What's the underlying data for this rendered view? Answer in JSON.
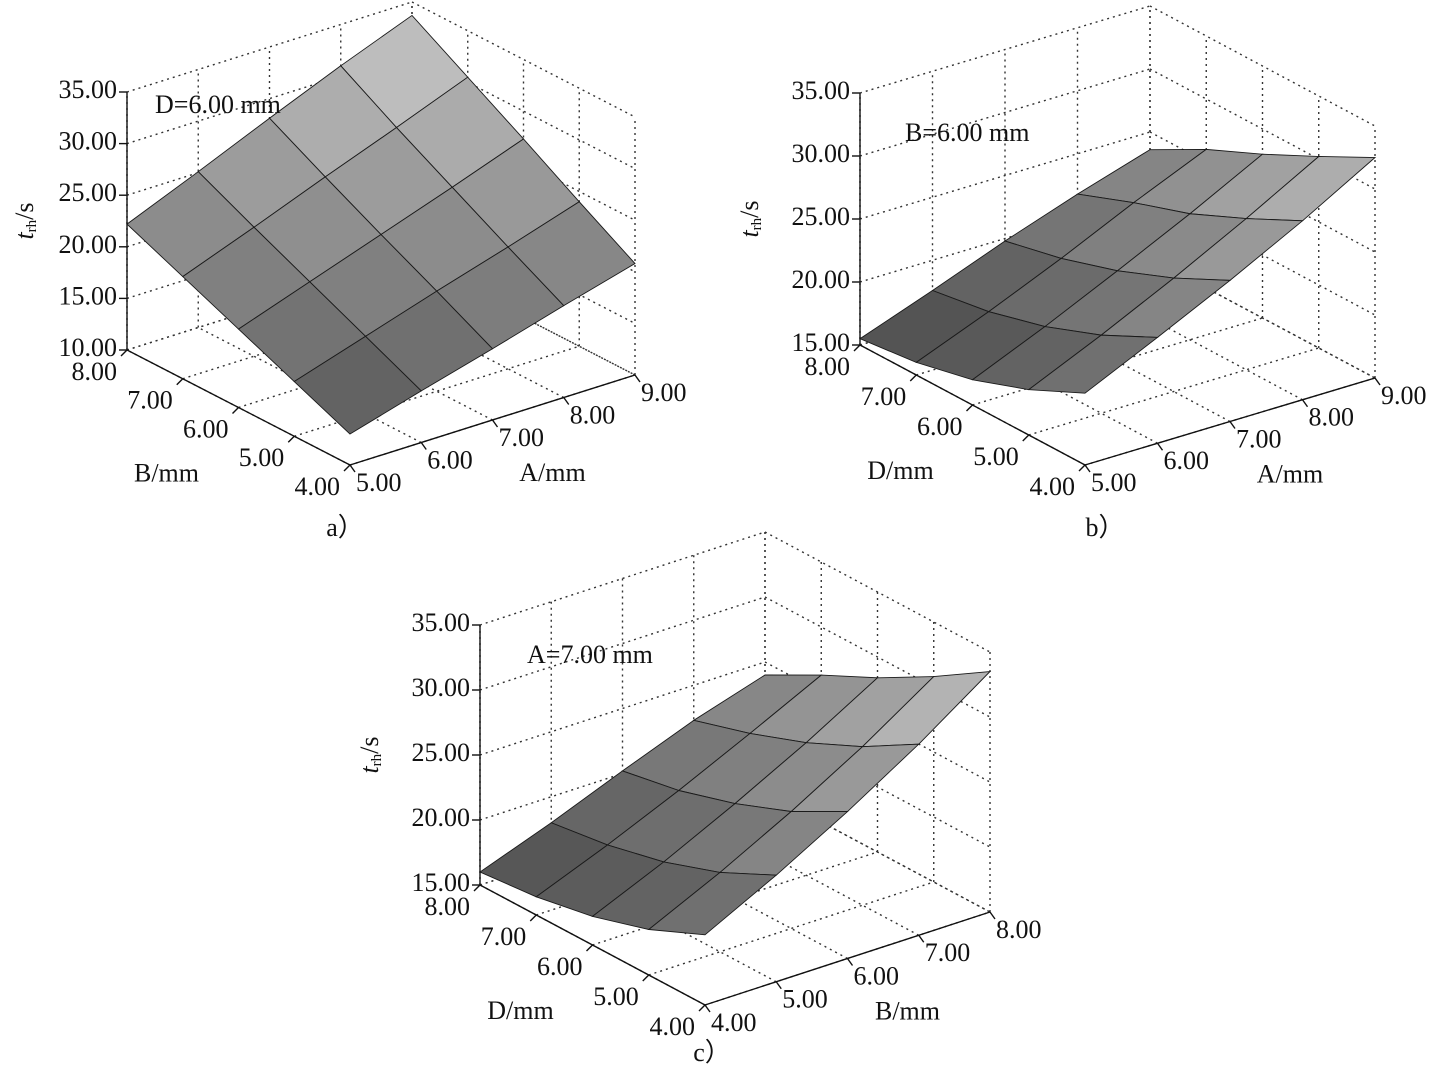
{
  "chart_data": [
    {
      "type": "surface",
      "annotation": "D=6.00 mm",
      "caption": "a）",
      "z_label": {
        "var": "t",
        "sub": "rh",
        "unit": "/s"
      },
      "x_label": "A/mm",
      "y_label": "B/mm",
      "x": [
        5,
        6,
        7,
        8,
        9
      ],
      "y": [
        4,
        5,
        6,
        7,
        8
      ],
      "z": [
        [
          13,
          15.0,
          16.9,
          18.9,
          20.8
        ],
        [
          15.3,
          17.5,
          19.7,
          21.8,
          24.0
        ],
        [
          17.6,
          20.0,
          22.4,
          24.8,
          27.3
        ],
        [
          19.9,
          22.5,
          25.2,
          27.8,
          30.5
        ],
        [
          22.2,
          25.1,
          28.1,
          31.0,
          33.7
        ]
      ],
      "xlim": [
        5,
        9
      ],
      "ylim": [
        4,
        8
      ],
      "zlim": [
        10,
        35
      ],
      "xticks": [
        {
          "value": 5,
          "label": "5.00"
        },
        {
          "value": 6,
          "label": "6.00"
        },
        {
          "value": 7,
          "label": "7.00"
        },
        {
          "value": 8,
          "label": "8.00"
        },
        {
          "value": 9,
          "label": "9.00"
        }
      ],
      "yticks": [
        {
          "value": 4,
          "label": "4.00"
        },
        {
          "value": 5,
          "label": "5.00"
        },
        {
          "value": 6,
          "label": "6.00"
        },
        {
          "value": 7,
          "label": "7.00"
        },
        {
          "value": 8,
          "label": "8.00"
        }
      ],
      "zticks": [
        {
          "value": 10,
          "label": "10.00"
        },
        {
          "value": 15,
          "label": "15.00"
        },
        {
          "value": 20,
          "label": "20.00"
        },
        {
          "value": 25,
          "label": "25.00"
        },
        {
          "value": 30,
          "label": "30.00"
        },
        {
          "value": 35,
          "label": "35.00"
        }
      ]
    },
    {
      "type": "surface",
      "annotation": "B=6.00 mm",
      "caption": "b）",
      "z_label": {
        "var": "t",
        "sub": "rh",
        "unit": "/s"
      },
      "x_label": "A/mm",
      "y_label": "D/mm",
      "x": [
        5,
        6,
        7,
        8,
        9
      ],
      "y": [
        4,
        5,
        6,
        7,
        8
      ],
      "z": [
        [
          20.7,
          23.4,
          26.2,
          29.2,
          32.5
        ],
        [
          18.6,
          21.2,
          24.0,
          27.0,
          30.2
        ],
        [
          17.0,
          19.5,
          22.2,
          25.0,
          28.0
        ],
        [
          16.0,
          18.3,
          20.8,
          23.5,
          26.0
        ],
        [
          15.5,
          17.6,
          19.8,
          21.8,
          23.6
        ]
      ],
      "xlim": [
        5,
        9
      ],
      "ylim": [
        4,
        8
      ],
      "zlim": [
        15,
        35
      ],
      "xticks": [
        {
          "value": 5,
          "label": "5.00"
        },
        {
          "value": 6,
          "label": "6.00"
        },
        {
          "value": 7,
          "label": "7.00"
        },
        {
          "value": 8,
          "label": "8.00"
        },
        {
          "value": 9,
          "label": "9.00"
        }
      ],
      "yticks": [
        {
          "value": 4,
          "label": "4.00"
        },
        {
          "value": 5,
          "label": "5.00"
        },
        {
          "value": 6,
          "label": "6.00"
        },
        {
          "value": 7,
          "label": "7.00"
        },
        {
          "value": 8,
          "label": "8.00"
        }
      ],
      "zticks": [
        {
          "value": 15,
          "label": "15.00"
        },
        {
          "value": 20,
          "label": "20.00"
        },
        {
          "value": 25,
          "label": "25.00"
        },
        {
          "value": 30,
          "label": "30.00"
        },
        {
          "value": 35,
          "label": "35.00"
        }
      ]
    },
    {
      "type": "surface",
      "annotation": "A=7.00 mm",
      "caption": "c）",
      "z_label": {
        "var": "t",
        "sub": "rh",
        "unit": "/s"
      },
      "x_label": "B/mm",
      "y_label": "D/mm",
      "x": [
        4,
        5,
        6,
        7,
        8
      ],
      "y": [
        4,
        5,
        6,
        7,
        8
      ],
      "z": [
        [
          20.4,
          23.2,
          26.3,
          29.7,
          33.5
        ],
        [
          18.5,
          21.1,
          24.0,
          27.2,
          30.8
        ],
        [
          17.2,
          19.6,
          22.3,
          25.2,
          28.4
        ],
        [
          16.4,
          18.6,
          21.0,
          23.6,
          26.3
        ],
        [
          16.0,
          18.0,
          20.2,
          22.3,
          24.0
        ]
      ],
      "xlim": [
        4,
        8
      ],
      "ylim": [
        4,
        8
      ],
      "zlim": [
        15,
        35
      ],
      "xticks": [
        {
          "value": 4,
          "label": "4.00"
        },
        {
          "value": 5,
          "label": "5.00"
        },
        {
          "value": 6,
          "label": "6.00"
        },
        {
          "value": 7,
          "label": "7.00"
        },
        {
          "value": 8,
          "label": "8.00"
        }
      ],
      "yticks": [
        {
          "value": 4,
          "label": "4.00"
        },
        {
          "value": 5,
          "label": "5.00"
        },
        {
          "value": 6,
          "label": "6.00"
        },
        {
          "value": 7,
          "label": "7.00"
        },
        {
          "value": 8,
          "label": "8.00"
        }
      ],
      "zticks": [
        {
          "value": 15,
          "label": "15.00"
        },
        {
          "value": 20,
          "label": "20.00"
        },
        {
          "value": 25,
          "label": "25.00"
        },
        {
          "value": 30,
          "label": "30.00"
        },
        {
          "value": 35,
          "label": "35.00"
        }
      ]
    }
  ]
}
